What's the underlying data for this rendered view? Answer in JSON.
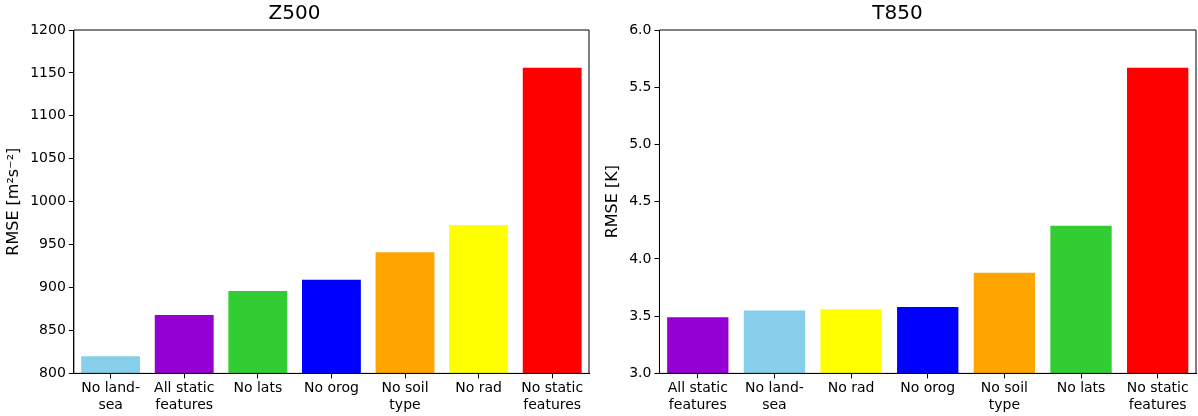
{
  "chart_data": [
    {
      "type": "bar",
      "title": "Z500",
      "ylabel": "RMSE [m²s⁻²]",
      "categories": [
        "No land-sea",
        "All static features",
        "No lats",
        "No orog",
        "No soil type",
        "No rad",
        "No static features"
      ],
      "values": [
        820,
        868,
        896,
        909,
        941,
        973,
        1156
      ],
      "colors": [
        "#87ceeb",
        "#9400d3",
        "#32cd32",
        "#0000ff",
        "#ffa500",
        "#ffff00",
        "#ff0000"
      ],
      "ylim": [
        800,
        1200
      ],
      "yticks": [
        800,
        850,
        900,
        950,
        1000,
        1050,
        1100,
        1150,
        1200
      ],
      "grid": false,
      "legend": false
    },
    {
      "type": "bar",
      "title": "T850",
      "ylabel": "RMSE [K]",
      "categories": [
        "All static features",
        "No land-sea",
        "No rad",
        "No orog",
        "No soil type",
        "No lats",
        "No static features"
      ],
      "values": [
        3.49,
        3.55,
        3.56,
        3.58,
        3.88,
        4.29,
        5.67
      ],
      "colors": [
        "#9400d3",
        "#87ceeb",
        "#ffff00",
        "#0000ff",
        "#ffa500",
        "#32cd32",
        "#ff0000"
      ],
      "ylim": [
        3.0,
        6.0
      ],
      "yticks": [
        {
          "value": 3.0,
          "label": "3.0"
        },
        {
          "value": 3.5,
          "label": "3.5"
        },
        {
          "value": 4.0,
          "label": "4.0"
        },
        {
          "value": 4.5,
          "label": "4.5"
        },
        {
          "value": 5.0,
          "label": "5.0"
        },
        {
          "value": 5.5,
          "label": "5.5"
        },
        {
          "value": 6.0,
          "label": "6.0"
        }
      ],
      "grid": false,
      "legend": false
    }
  ]
}
